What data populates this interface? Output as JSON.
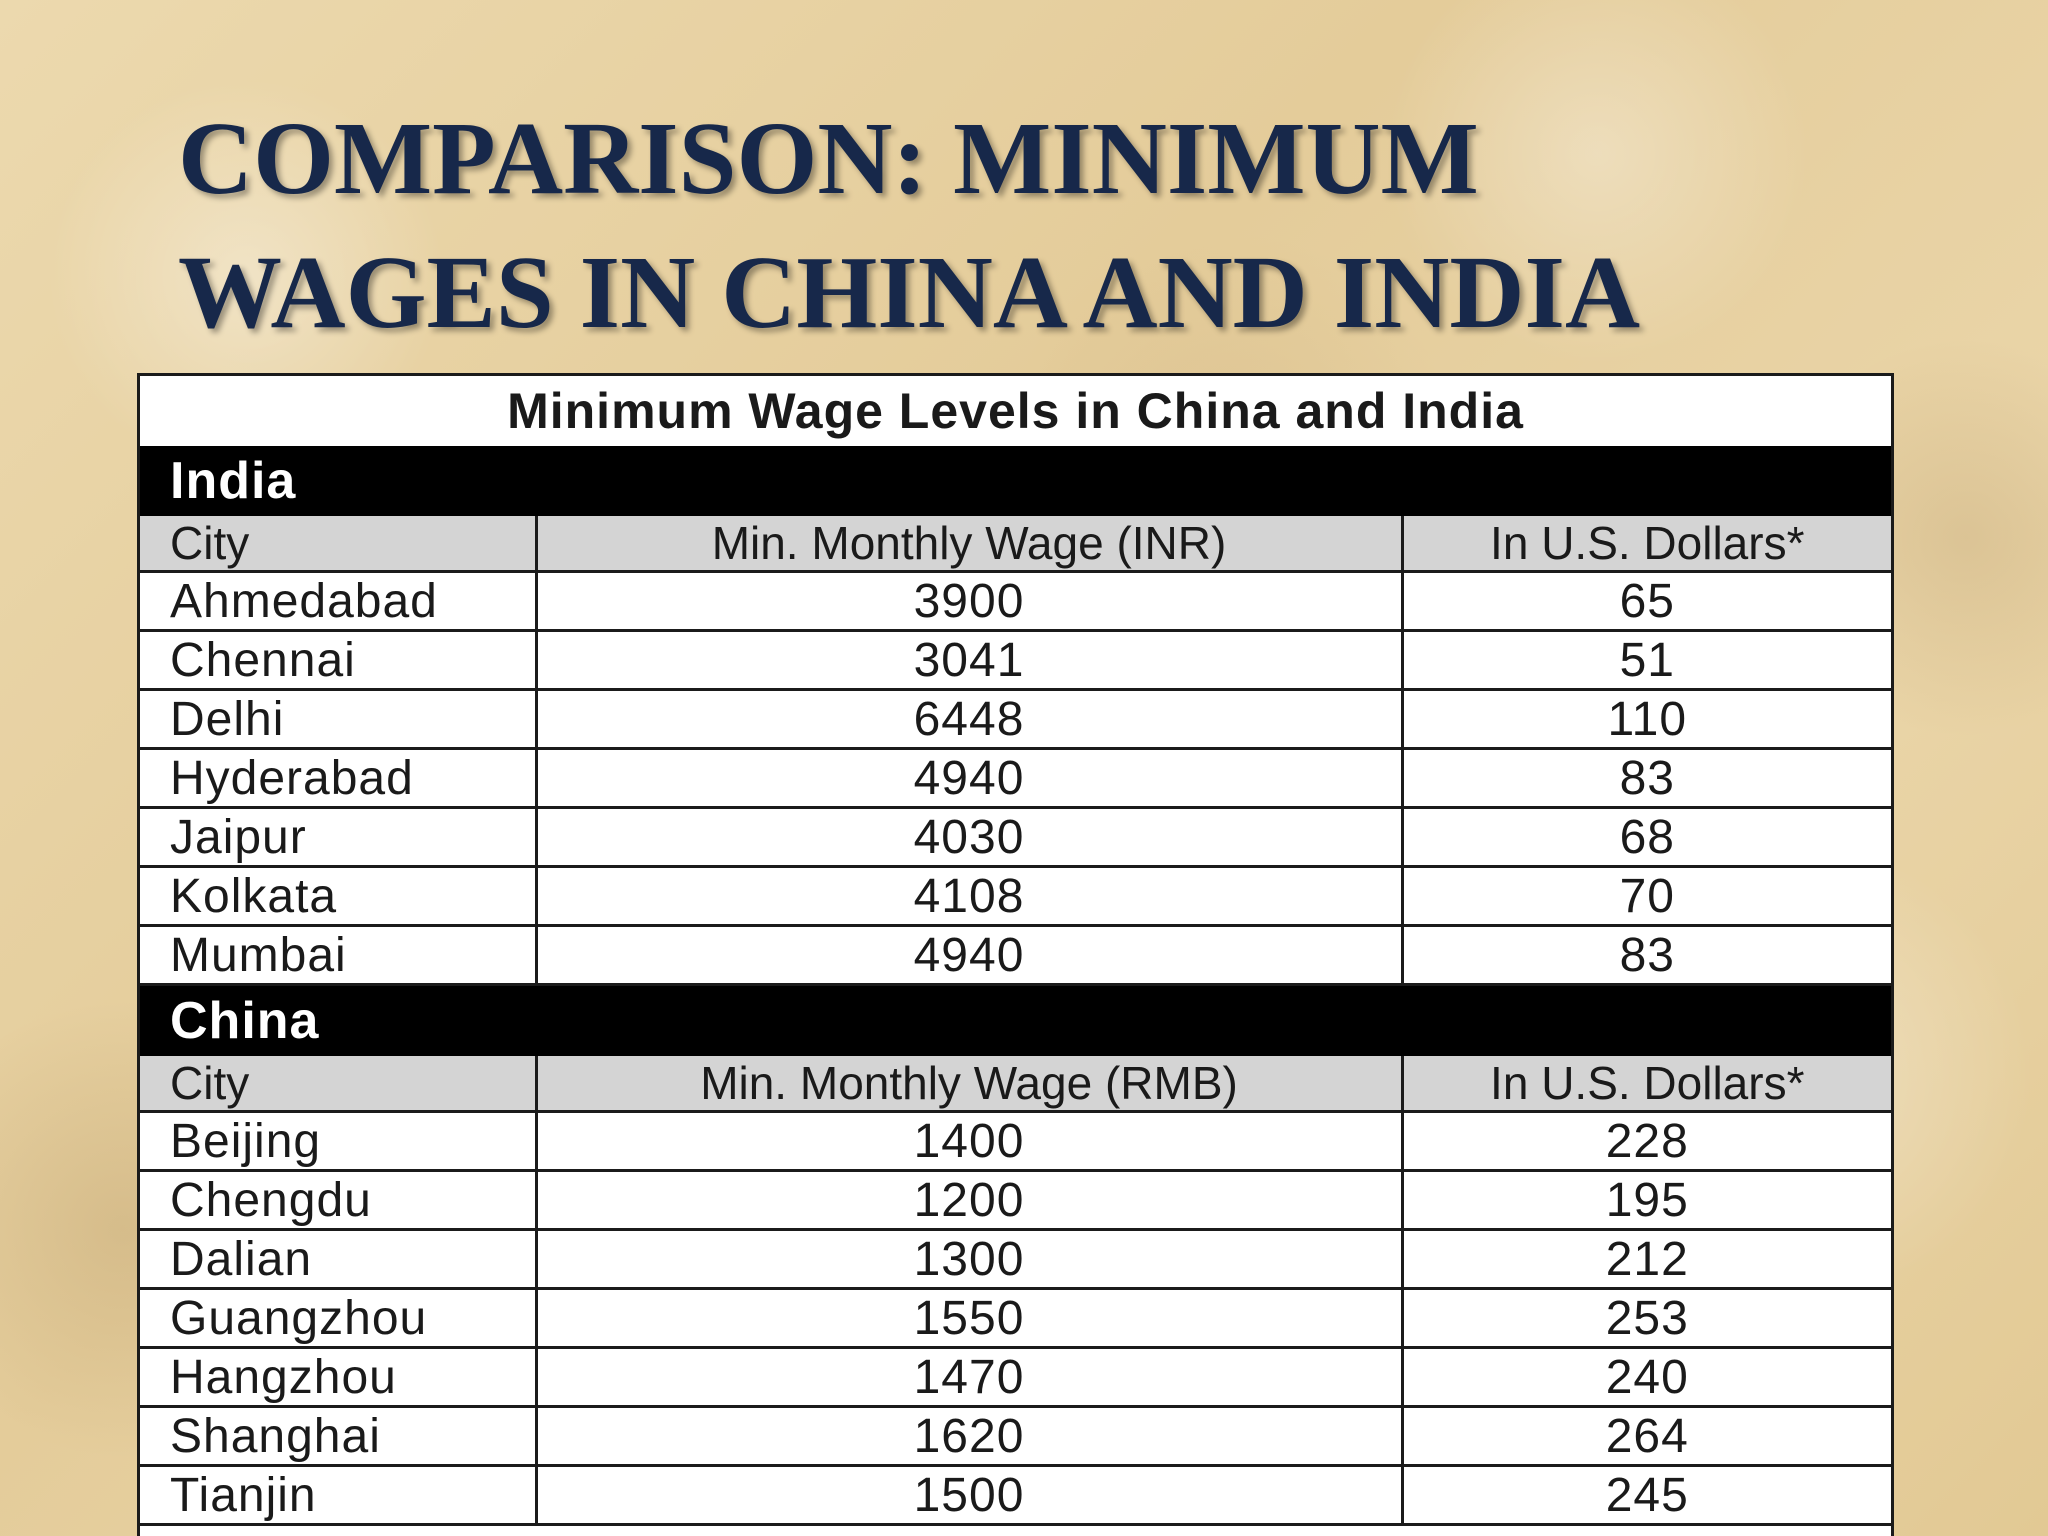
{
  "slide": {
    "title_line1": "COMPARISON: MINIMUM",
    "title_line2": "WAGES IN CHINA AND INDIA"
  },
  "table": {
    "caption": "Minimum Wage Levels in China and India",
    "sections": [
      {
        "name": "India",
        "headers": [
          "City",
          "Min. Monthly Wage (INR)",
          "In U.S. Dollars*"
        ],
        "rows": [
          [
            "Ahmedabad",
            "3900",
            "65"
          ],
          [
            "Chennai",
            "3041",
            "51"
          ],
          [
            "Delhi",
            "6448",
            "110"
          ],
          [
            "Hyderabad",
            "4940",
            "83"
          ],
          [
            "Jaipur",
            "4030",
            "68"
          ],
          [
            "Kolkata",
            "4108",
            "70"
          ],
          [
            "Mumbai",
            "4940",
            "83"
          ]
        ]
      },
      {
        "name": "China",
        "headers": [
          "City",
          "Min. Monthly Wage (RMB)",
          "In U.S. Dollars*"
        ],
        "rows": [
          [
            "Beijing",
            "1400",
            "228"
          ],
          [
            "Chengdu",
            "1200",
            "195"
          ],
          [
            "Dalian",
            "1300",
            "212"
          ],
          [
            "Guangzhou",
            "1550",
            "253"
          ],
          [
            "Hangzhou",
            "1470",
            "240"
          ],
          [
            "Shanghai",
            "1620",
            "264"
          ],
          [
            "Tianjin",
            "1500",
            "245"
          ]
        ]
      }
    ]
  }
}
